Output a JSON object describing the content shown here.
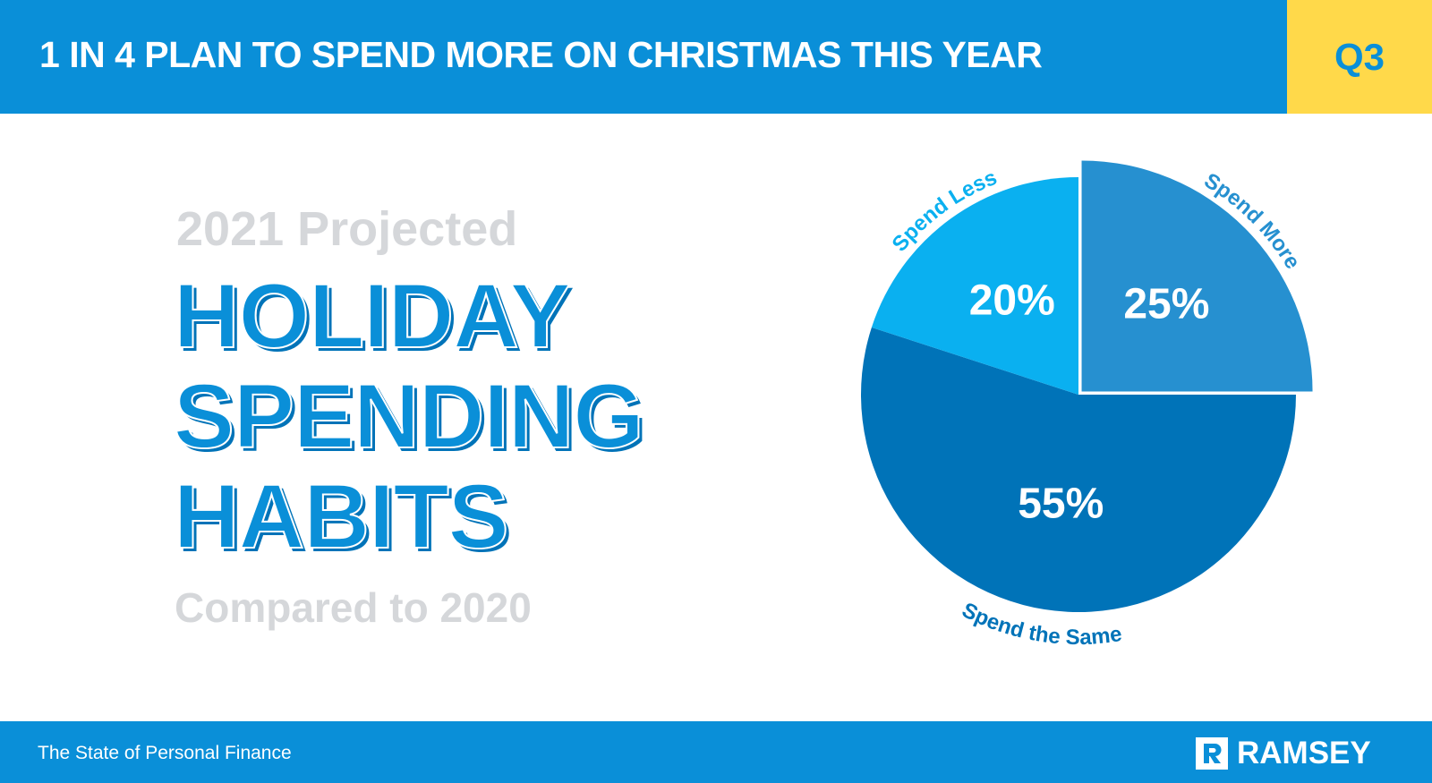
{
  "header": {
    "title": "1 IN 4 PLAN TO SPEND MORE ON CHRISTMAS THIS YEAR",
    "badge": "Q3"
  },
  "headline": {
    "kicker": "2021 Projected",
    "lines": [
      "HOLIDAY",
      "SPENDING",
      "HABITS"
    ],
    "note": "Compared to 2020"
  },
  "footer": {
    "source": "The State of Personal Finance",
    "brand": "RAMSEY"
  },
  "chart_data": {
    "type": "pie",
    "categories": [
      "Spend More",
      "Spend the Same",
      "Spend Less"
    ],
    "values": [
      25,
      55,
      20
    ],
    "value_labels": [
      "25%",
      "55%",
      "20%"
    ],
    "colors": [
      "#2690D0",
      "#0073B8",
      "#0AB0F0"
    ],
    "exploded": [
      true,
      false,
      false
    ]
  }
}
